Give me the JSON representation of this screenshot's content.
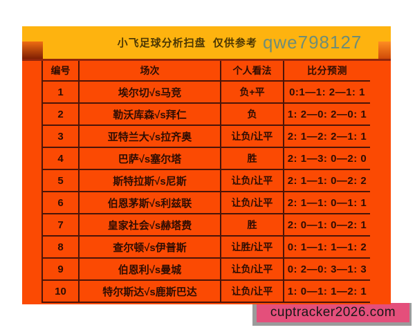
{
  "header": {
    "title": "小飞足球分析扫盘  仅供参考",
    "watermark": "qwe798127"
  },
  "table": {
    "columns": [
      "编号",
      "场次",
      "个人看法",
      "比分预测"
    ],
    "rows": [
      {
        "no": "1",
        "match": "埃尔切√s马竞",
        "opinion": "负+平",
        "score": "0:1—1: 2—1: 1"
      },
      {
        "no": "2",
        "match": "勒沃库森√s拜仁",
        "opinion": "负",
        "score": "1: 2—0: 2—0: 1"
      },
      {
        "no": "3",
        "match": "亚特兰大√s拉齐奥",
        "opinion": "让负/让平",
        "score": "2: 1—2: 2—1: 1"
      },
      {
        "no": "4",
        "match": "巴萨√s塞尔塔",
        "opinion": "胜",
        "score": "2: 1—3: 0—2: 0"
      },
      {
        "no": "5",
        "match": "斯特拉斯√s尼斯",
        "opinion": "让负/让平",
        "score": "2: 1—1: 0—2: 2"
      },
      {
        "no": "6",
        "match": "伯恩茅斯√s利兹联",
        "opinion": "让负/让平",
        "score": "2: 1—1: 0—1: 1"
      },
      {
        "no": "7",
        "match": "皇家社会√s赫塔费",
        "opinion": "胜",
        "score": "2: 0—1: 0—2: 1"
      },
      {
        "no": "8",
        "match": "查尔顿√s伊普斯",
        "opinion": "让胜/让平",
        "score": "0: 1—1: 1—1: 2"
      },
      {
        "no": "9",
        "match": "伯恩利√s曼城",
        "opinion": "让负/让平",
        "score": "0: 2—0: 3—1: 3"
      },
      {
        "no": "10",
        "match": "特尔斯达√s鹿斯巴达",
        "opinion": "让负/让平",
        "score": "1: 0—1: 1—2: 1"
      }
    ]
  },
  "footer": {
    "watermark": "cuptracker2026.com"
  },
  "colors": {
    "gold": "#feb30f",
    "red": "#fb4a03",
    "grid": "#4a1408",
    "pink": "#e44f7b",
    "wm-green": "#6e8d77"
  }
}
